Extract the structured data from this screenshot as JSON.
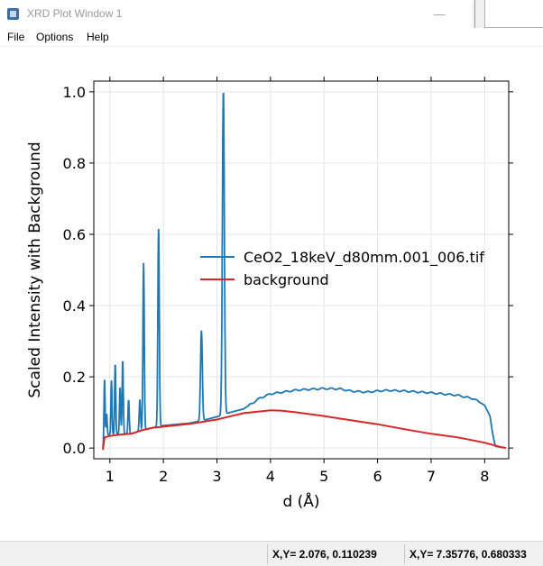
{
  "window": {
    "title": "XRD Plot Window 1",
    "minimize_glyph": "—",
    "maximize_glyph": "☐"
  },
  "menu": {
    "items": [
      "File",
      "Options",
      "Help"
    ]
  },
  "chart_data": {
    "type": "line",
    "title": "",
    "xlabel": "d (Å)",
    "ylabel": "Scaled Intensity with Background",
    "xlim": [
      0.7,
      8.45
    ],
    "ylim": [
      -0.03,
      1.03
    ],
    "xticks": [
      1,
      2,
      3,
      4,
      5,
      6,
      7,
      8
    ],
    "yticks": [
      0.0,
      0.2,
      0.4,
      0.6,
      0.8,
      1.0
    ],
    "ytick_labels": [
      "0.0",
      "0.2",
      "0.4",
      "0.6",
      "0.8",
      "1.0"
    ],
    "grid": true,
    "legend": "center-right",
    "series": [
      {
        "name": "CeO2_18keV_d80mm.001_006.tif",
        "color": "#1f77b4",
        "baseline": [
          [
            0.87,
            0.0
          ],
          [
            0.9,
            0.035
          ],
          [
            1.0,
            0.038
          ],
          [
            1.2,
            0.04
          ],
          [
            1.4,
            0.04
          ],
          [
            1.6,
            0.05
          ],
          [
            1.8,
            0.057
          ],
          [
            2.0,
            0.063
          ],
          [
            2.2,
            0.066
          ],
          [
            2.5,
            0.07
          ],
          [
            2.8,
            0.08
          ],
          [
            3.05,
            0.09
          ],
          [
            3.2,
            0.098
          ],
          [
            3.5,
            0.11
          ],
          [
            3.8,
            0.14
          ],
          [
            4.0,
            0.152
          ],
          [
            4.5,
            0.163
          ],
          [
            5.0,
            0.167
          ],
          [
            5.3,
            0.166
          ],
          [
            5.5,
            0.16
          ],
          [
            5.8,
            0.157
          ],
          [
            6.0,
            0.16
          ],
          [
            6.2,
            0.162
          ],
          [
            6.5,
            0.16
          ],
          [
            7.0,
            0.155
          ],
          [
            7.5,
            0.148
          ],
          [
            7.8,
            0.138
          ],
          [
            8.0,
            0.12
          ],
          [
            8.1,
            0.09
          ],
          [
            8.15,
            0.04
          ],
          [
            8.2,
            0.005
          ],
          [
            8.4,
            0.0
          ]
        ],
        "peaks": [
          {
            "d": 0.9,
            "height": 0.195
          },
          {
            "d": 0.94,
            "height": 0.095
          },
          {
            "d": 1.03,
            "height": 0.19
          },
          {
            "d": 1.1,
            "height": 0.235
          },
          {
            "d": 1.19,
            "height": 0.17
          },
          {
            "d": 1.24,
            "height": 0.245
          },
          {
            "d": 1.35,
            "height": 0.135
          },
          {
            "d": 1.56,
            "height": 0.135
          },
          {
            "d": 1.63,
            "height": 0.52
          },
          {
            "d": 1.91,
            "height": 0.615
          },
          {
            "d": 2.71,
            "height": 0.33
          },
          {
            "d": 3.12,
            "height": 1.0
          }
        ]
      },
      {
        "name": "background",
        "color": "#d62728",
        "points": [
          [
            0.87,
            -0.005
          ],
          [
            0.9,
            0.03
          ],
          [
            1.0,
            0.034
          ],
          [
            1.2,
            0.038
          ],
          [
            1.4,
            0.04
          ],
          [
            1.6,
            0.05
          ],
          [
            1.8,
            0.057
          ],
          [
            2.0,
            0.06
          ],
          [
            2.5,
            0.068
          ],
          [
            3.0,
            0.08
          ],
          [
            3.5,
            0.098
          ],
          [
            4.0,
            0.106
          ],
          [
            4.2,
            0.105
          ],
          [
            4.5,
            0.1
          ],
          [
            5.0,
            0.09
          ],
          [
            5.5,
            0.078
          ],
          [
            6.0,
            0.067
          ],
          [
            6.5,
            0.053
          ],
          [
            7.0,
            0.04
          ],
          [
            7.5,
            0.03
          ],
          [
            8.0,
            0.015
          ],
          [
            8.3,
            0.003
          ],
          [
            8.4,
            0.0
          ]
        ]
      }
    ]
  },
  "status": {
    "cursor_a": "X,Y= 2.076, 0.110239",
    "cursor_b": "X,Y= 7.35776, 0.680333"
  }
}
